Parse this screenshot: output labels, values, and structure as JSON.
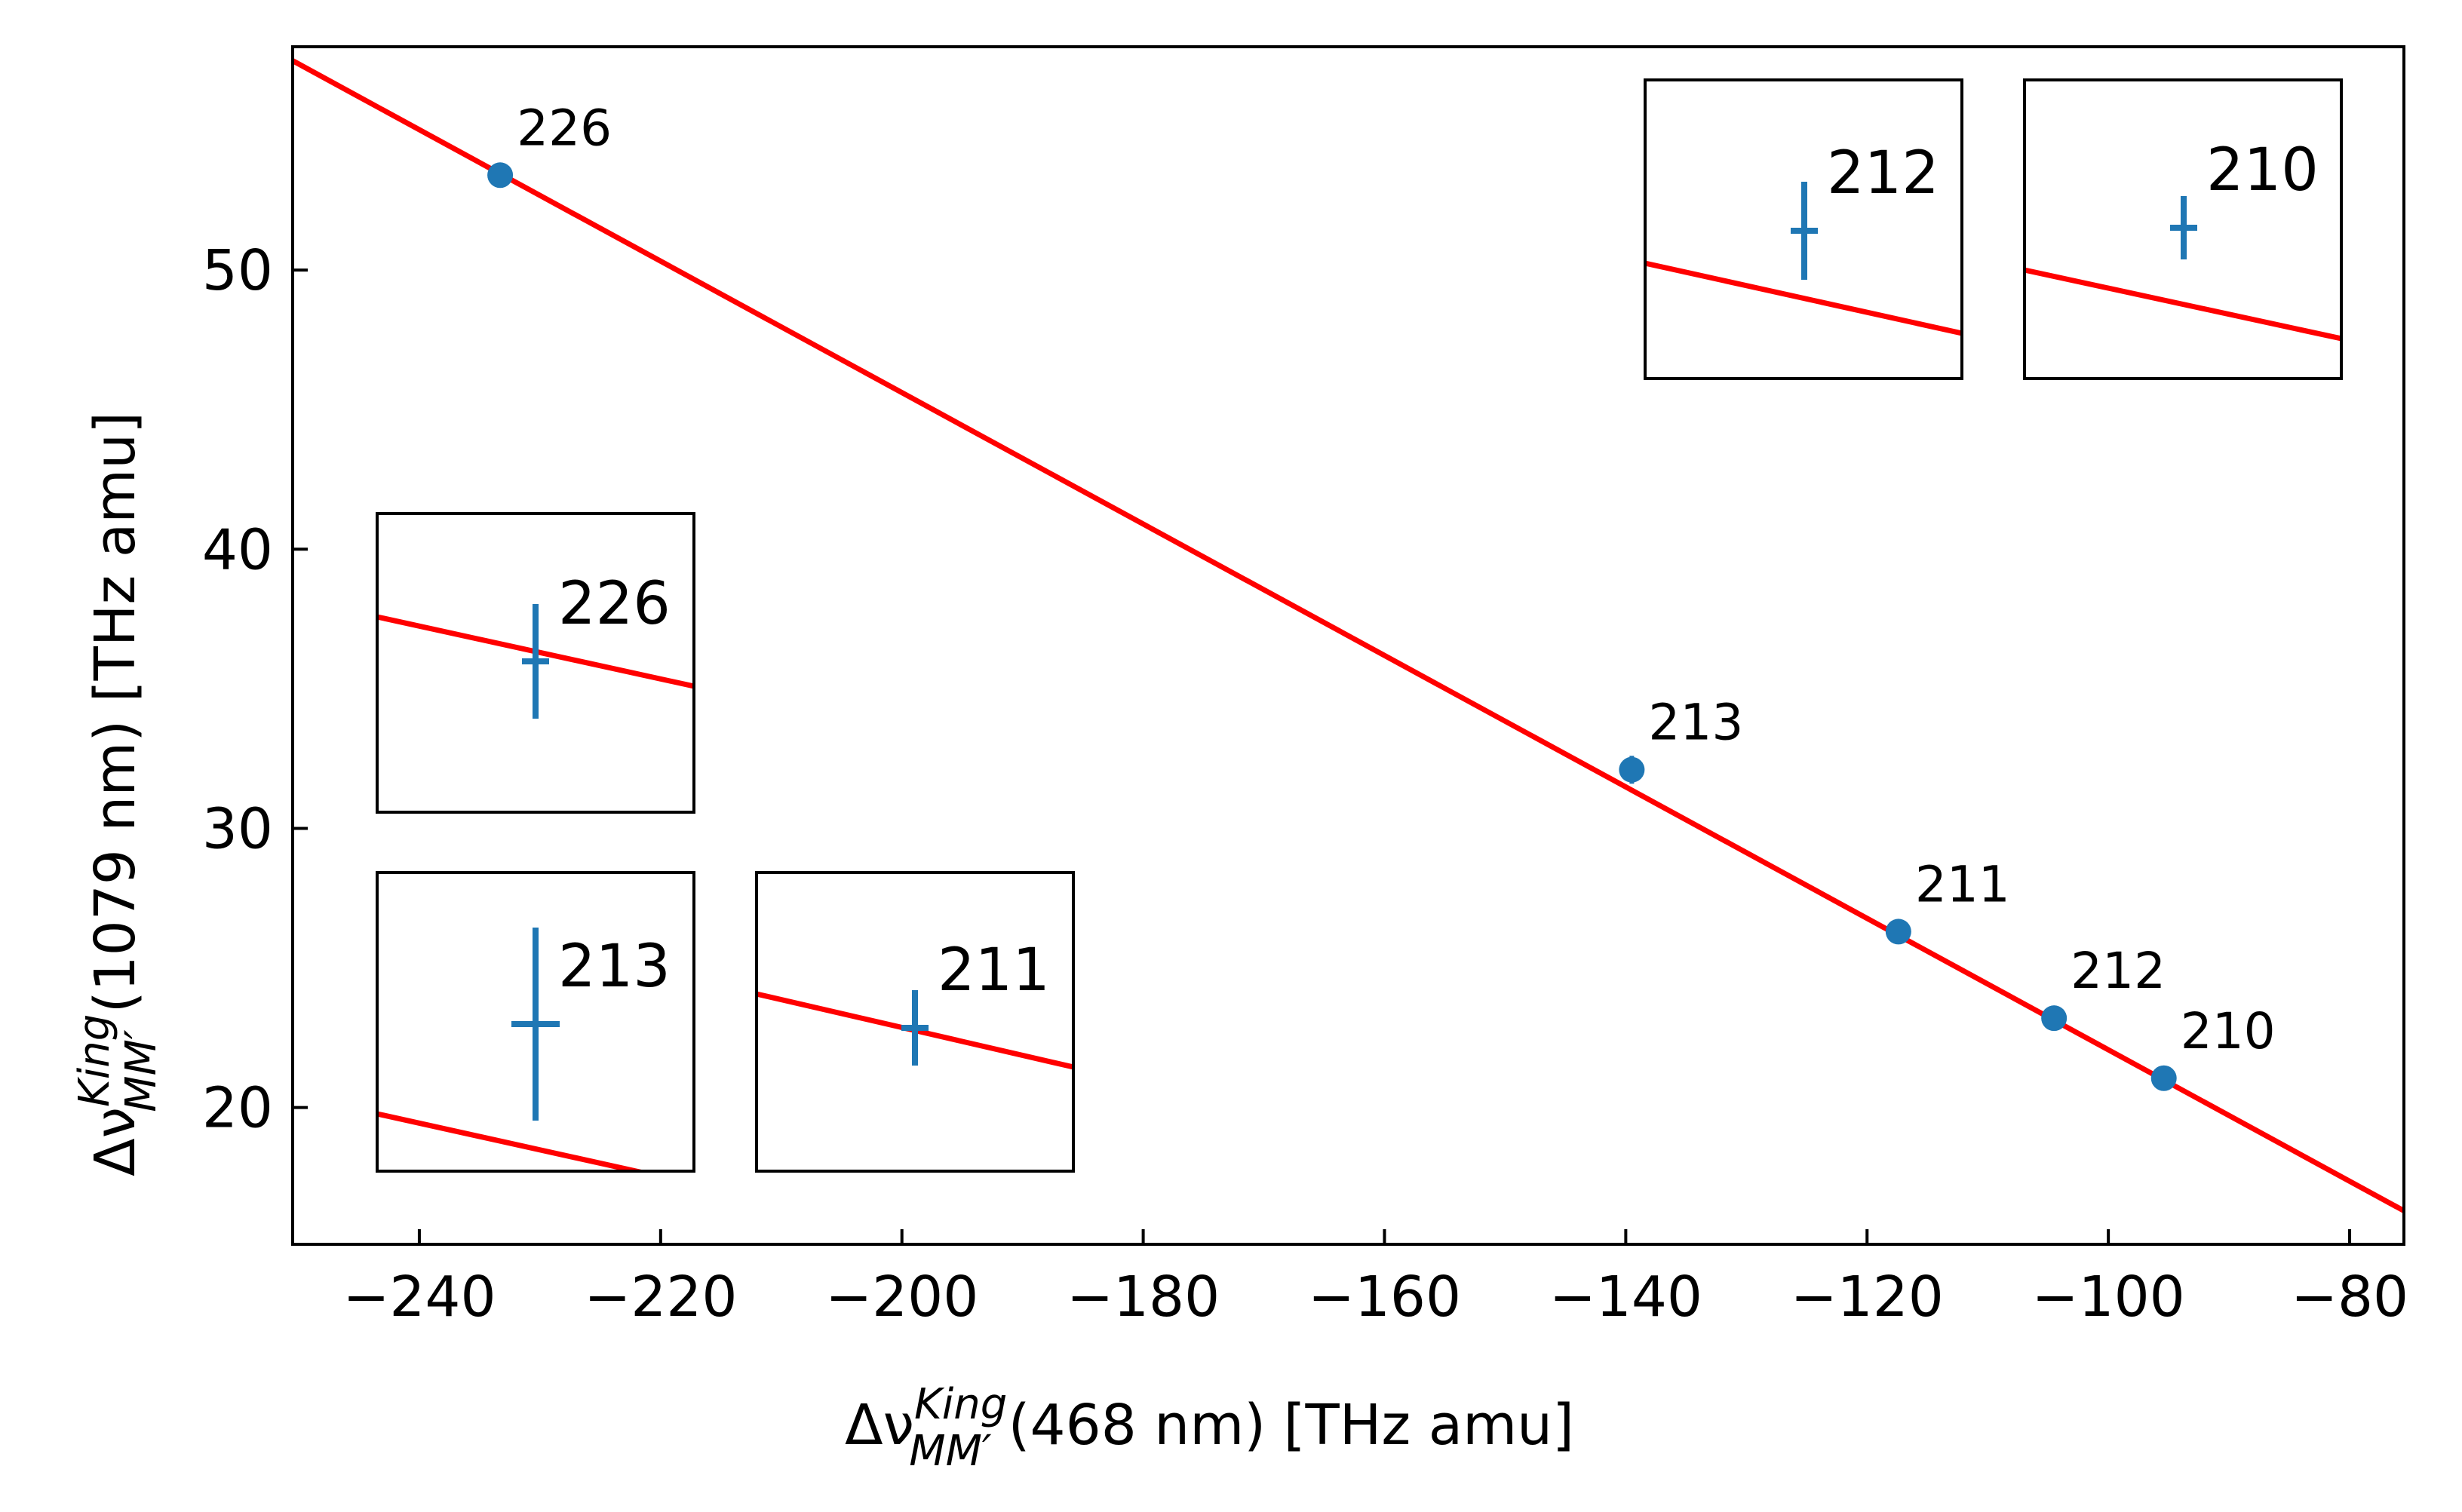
{
  "chart_data": {
    "type": "scatter",
    "xlabel": {
      "prefix": "Δν",
      "sup": "King",
      "sub": "MM′",
      "suffix": "(468 nm) [THz amu]"
    },
    "ylabel": {
      "prefix": "Δν",
      "sup": "King",
      "sub": "MM′",
      "suffix": "(1079 nm) [THz amu]"
    },
    "xlim": [
      -250.5,
      -75.5
    ],
    "ylim": [
      15.1,
      58.0
    ],
    "xticks": [
      -240,
      -220,
      -200,
      -180,
      -160,
      -140,
      -120,
      -100,
      -80
    ],
    "xtick_labels": [
      "−240",
      "−220",
      "−200",
      "−180",
      "−160",
      "−140",
      "−120",
      "−100",
      "−80"
    ],
    "yticks": [
      20,
      30,
      40,
      50
    ],
    "ytick_labels": [
      "20",
      "30",
      "40",
      "50"
    ],
    "grid": false,
    "fit_line": {
      "color": "#ff0000",
      "x": [
        -250.5,
        -75.5
      ],
      "y": [
        57.5,
        16.3
      ]
    },
    "series": [
      {
        "color": "#1f77b4",
        "points": [
          {
            "label": "226",
            "x": -233.3,
            "y": 53.4,
            "yerr": 0.2
          },
          {
            "label": "213",
            "x": -139.5,
            "y": 32.1,
            "yerr": 0.5
          },
          {
            "label": "211",
            "x": -117.4,
            "y": 26.3,
            "yerr": 0.15
          },
          {
            "label": "212",
            "x": -104.5,
            "y": 23.2,
            "yerr": 0.1
          },
          {
            "label": "210",
            "x": -95.4,
            "y": 21.05,
            "yerr": 0.1
          }
        ]
      }
    ],
    "insets": [
      {
        "label": "226",
        "position": "middle-left"
      },
      {
        "label": "213",
        "position": "bottom-left"
      },
      {
        "label": "211",
        "position": "bottom-left-second"
      },
      {
        "label": "212",
        "position": "top-right-first"
      },
      {
        "label": "210",
        "position": "top-right-second"
      }
    ]
  }
}
